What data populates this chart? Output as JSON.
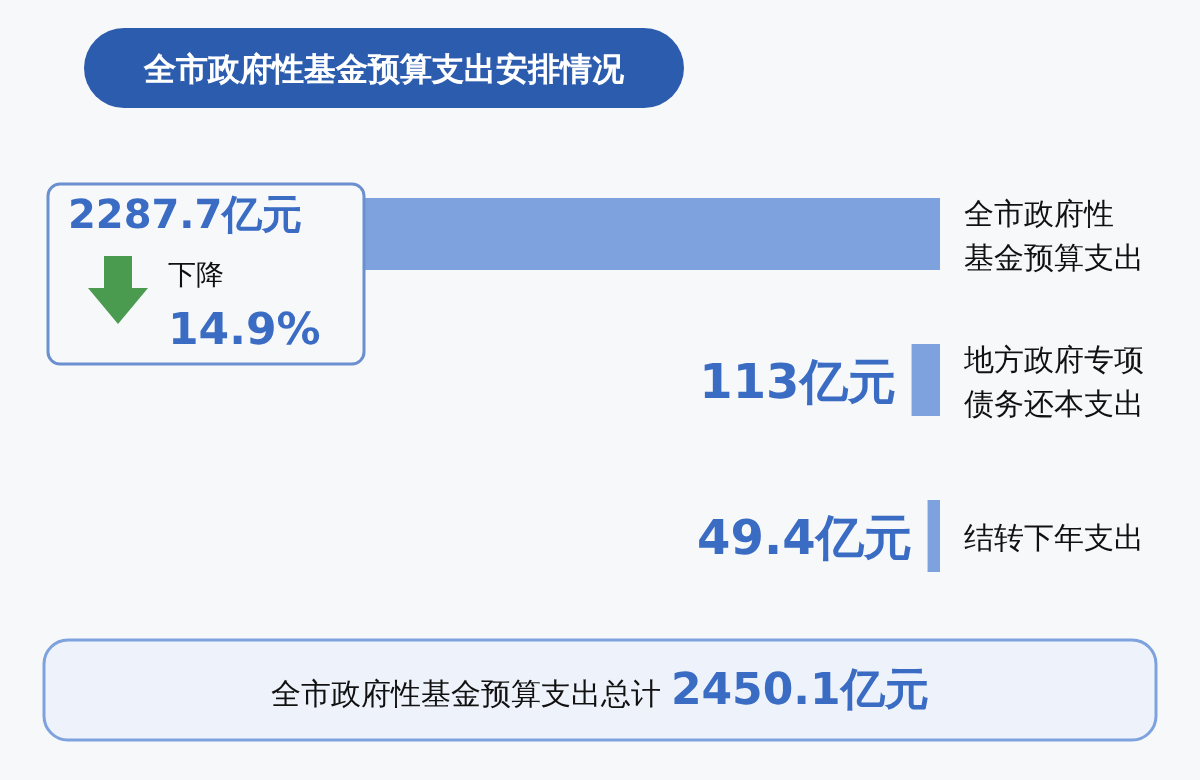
{
  "chart_data": {
    "type": "bar",
    "orientation": "horizontal",
    "title": "全市政府性基金预算支出安排情况",
    "categories": [
      "全市政府性基金预算支出",
      "地方政府专项债务还本支出",
      "结转下年支出"
    ],
    "values": [
      2287.7,
      113,
      49.4
    ],
    "value_labels": [
      "2287.7亿元",
      "113亿元",
      "49.4亿元"
    ],
    "color": "#7da2dd",
    "annotations": [
      "下降",
      "14.9%",
      "全市政府性基金预算支出总计",
      "2450.1亿元"
    ]
  }
}
